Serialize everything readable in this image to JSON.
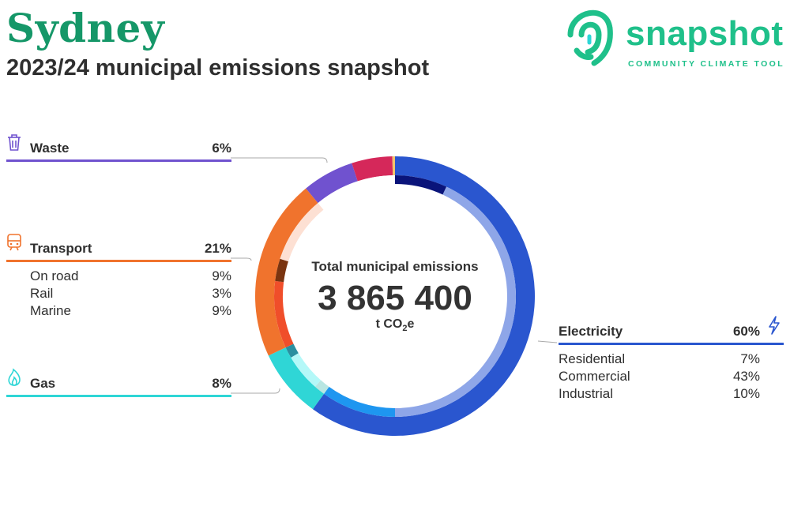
{
  "header": {
    "city": "Sydney",
    "subtitle": "2023/24 municipal emissions snapshot"
  },
  "logo": {
    "word": "snapshot",
    "tagline": "COMMUNITY CLIMATE TOOL",
    "icon": "fingerprint-logo-icon",
    "color": "#1fc08a"
  },
  "center": {
    "label": "Total municipal emissions",
    "value": "3 865 400",
    "unit_prefix": "t CO",
    "unit_sub": "2",
    "unit_suffix": "e"
  },
  "categories": {
    "waste": {
      "name": "Waste",
      "pct": "6%",
      "icon": "trash-bin-icon",
      "color": "#7052cf"
    },
    "transport": {
      "name": "Transport",
      "pct": "21%",
      "icon": "train-icon",
      "color": "#f0732d",
      "subs": [
        {
          "name": "On road",
          "pct": "9%"
        },
        {
          "name": "Rail",
          "pct": "3%"
        },
        {
          "name": "Marine",
          "pct": "9%"
        }
      ]
    },
    "gas": {
      "name": "Gas",
      "pct": "8%",
      "icon": "flame-icon",
      "color": "#2fd6d6"
    },
    "electricity": {
      "name": "Electricity",
      "pct": "60%",
      "icon": "lightning-bolt-icon",
      "color": "#2a56cf",
      "subs": [
        {
          "name": "Residential",
          "pct": "7%"
        },
        {
          "name": "Commercial",
          "pct": "43%"
        },
        {
          "name": "Industrial",
          "pct": "10%"
        }
      ]
    }
  },
  "chart_data": {
    "type": "donut",
    "title": "Total municipal emissions",
    "total": "3 865 400",
    "unit": "t CO2e",
    "outer_ring": [
      {
        "name": "Electricity",
        "value": 60,
        "color": "#2a56cf"
      },
      {
        "name": "Gas",
        "value": 8,
        "color": "#2fd6d6"
      },
      {
        "name": "Transport",
        "value": 21,
        "color": "#f0732d"
      },
      {
        "name": "Waste",
        "value": 6,
        "color": "#7052cf"
      },
      {
        "name": "",
        "value": 4.7,
        "color": "#d5285a"
      },
      {
        "name": "",
        "value": 0.3,
        "color": "#f2c46b"
      }
    ],
    "inner_ring": [
      {
        "name": "Residential",
        "value": 7,
        "color": "#0a147a"
      },
      {
        "name": "Commercial",
        "value": 43,
        "color": "#8ea6e8"
      },
      {
        "name": "Industrial",
        "value": 10,
        "color": "#1e96f0"
      },
      {
        "name": "",
        "value": 1.5,
        "color": "#b8e6e2"
      },
      {
        "name": "",
        "value": 5,
        "color": "#b4f8f8"
      },
      {
        "name": "",
        "value": 1.5,
        "color": "#2a8fa0"
      },
      {
        "name": "On road",
        "value": 9,
        "color": "#f04e2a"
      },
      {
        "name": "Rail",
        "value": 3,
        "color": "#7a3410"
      },
      {
        "name": "Marine",
        "value": 9,
        "color": "#fde0d3"
      },
      {
        "name": "",
        "value": 11,
        "color": "#ffffff"
      }
    ]
  }
}
